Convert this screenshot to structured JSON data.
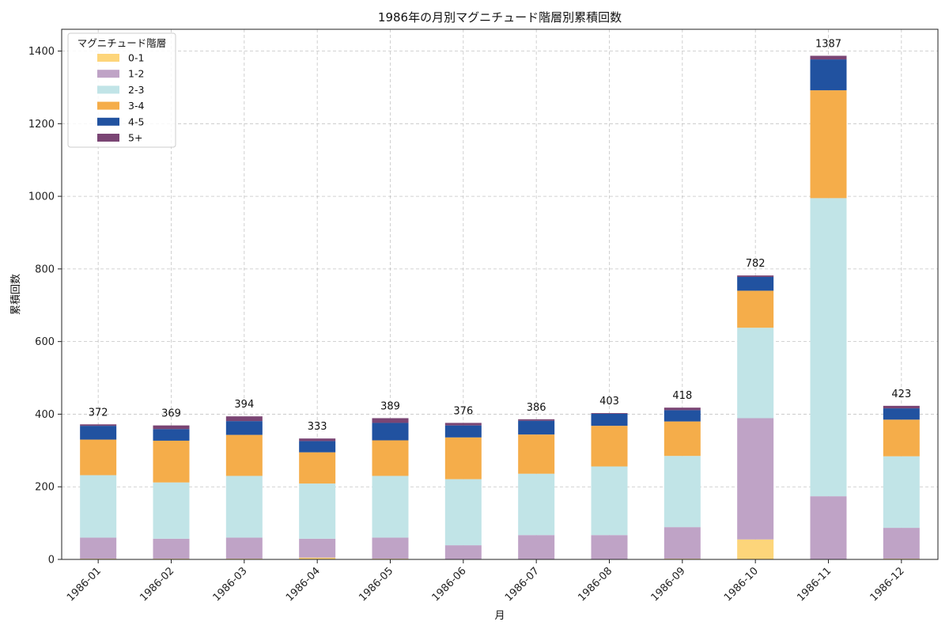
{
  "chart_data": {
    "type": "bar",
    "stacked": true,
    "title": "1986年の月別マグニチュード階層別累積回数",
    "xlabel": "月",
    "ylabel": "累積回数",
    "ylim": [
      0,
      1460
    ],
    "yticks": [
      0,
      200,
      400,
      600,
      800,
      1000,
      1200,
      1400
    ],
    "grid": true,
    "legend_title": "マグニチュード階層",
    "legend_position": "top-left",
    "categories": [
      "1986-01",
      "1986-02",
      "1986-03",
      "1986-04",
      "1986-05",
      "1986-06",
      "1986-07",
      "1986-08",
      "1986-09",
      "1986-10",
      "1986-11",
      "1986-12"
    ],
    "series": [
      {
        "name": "0-1",
        "color": "#FDD57A",
        "values": [
          2,
          2,
          2,
          5,
          2,
          1,
          1,
          1,
          2,
          55,
          1,
          2
        ]
      },
      {
        "name": "1-2",
        "color": "#BFA3C6",
        "values": [
          58,
          55,
          58,
          52,
          58,
          38,
          66,
          66,
          87,
          334,
          173,
          85
        ]
      },
      {
        "name": "2-3",
        "color": "#C1E4E7",
        "values": [
          172,
          155,
          170,
          152,
          170,
          182,
          169,
          189,
          196,
          249,
          821,
          197
        ]
      },
      {
        "name": "3-4",
        "color": "#F5AD4A",
        "values": [
          98,
          115,
          113,
          86,
          98,
          115,
          108,
          112,
          95,
          102,
          297,
          101
        ]
      },
      {
        "name": "4-5",
        "color": "#2152A0",
        "values": [
          38,
          32,
          38,
          31,
          48,
          33,
          38,
          33,
          31,
          38,
          85,
          31
        ]
      },
      {
        "name": "5+",
        "color": "#7A4574",
        "values": [
          4,
          10,
          13,
          7,
          13,
          7,
          4,
          2,
          7,
          4,
          10,
          7
        ]
      }
    ],
    "totals": [
      372,
      369,
      394,
      333,
      389,
      376,
      386,
      403,
      418,
      782,
      1387,
      423
    ]
  }
}
